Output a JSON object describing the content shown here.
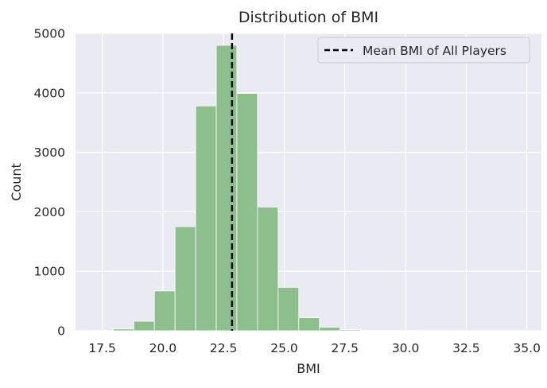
{
  "chart_data": {
    "type": "bar",
    "subtype": "histogram",
    "title": "Distribution of BMI",
    "xlabel": "BMI",
    "ylabel": "Count",
    "xlim": [
      16.4,
      35.6
    ],
    "ylim": [
      0,
      5000
    ],
    "xticks": [
      17.5,
      20.0,
      22.5,
      25.0,
      27.5,
      30.0,
      32.5,
      35.0
    ],
    "xtick_labels": [
      "17.5",
      "20.0",
      "22.5",
      "25.0",
      "27.5",
      "30.0",
      "32.5",
      "35.0"
    ],
    "yticks": [
      0,
      1000,
      2000,
      3000,
      4000,
      5000
    ],
    "ytick_labels": [
      "0",
      "1000",
      "2000",
      "3000",
      "4000",
      "5000"
    ],
    "grid": true,
    "legend_position": "top-right",
    "bins": [
      {
        "x0": 17.1,
        "x1": 17.95,
        "count": 5
      },
      {
        "x0": 17.95,
        "x1": 18.8,
        "count": 30
      },
      {
        "x0": 18.8,
        "x1": 19.65,
        "count": 160
      },
      {
        "x0": 19.65,
        "x1": 20.5,
        "count": 670
      },
      {
        "x0": 20.5,
        "x1": 21.35,
        "count": 1750
      },
      {
        "x0": 21.35,
        "x1": 22.2,
        "count": 3780
      },
      {
        "x0": 22.2,
        "x1": 23.05,
        "count": 4800
      },
      {
        "x0": 23.05,
        "x1": 23.9,
        "count": 3990
      },
      {
        "x0": 23.9,
        "x1": 24.75,
        "count": 2080
      },
      {
        "x0": 24.75,
        "x1": 25.6,
        "count": 730
      },
      {
        "x0": 25.6,
        "x1": 26.45,
        "count": 220
      },
      {
        "x0": 26.45,
        "x1": 27.3,
        "count": 60
      },
      {
        "x0": 27.3,
        "x1": 28.15,
        "count": 18
      },
      {
        "x0": 28.15,
        "x1": 29.0,
        "count": 6
      },
      {
        "x0": 29.0,
        "x1": 29.85,
        "count": 3
      },
      {
        "x0": 29.85,
        "x1": 30.7,
        "count": 2
      },
      {
        "x0": 30.7,
        "x1": 31.55,
        "count": 1
      },
      {
        "x0": 31.55,
        "x1": 32.4,
        "count": 1
      },
      {
        "x0": 32.4,
        "x1": 33.25,
        "count": 1
      },
      {
        "x0": 33.25,
        "x1": 34.1,
        "count": 1
      },
      {
        "x0": 34.1,
        "x1": 34.95,
        "count": 1
      }
    ],
    "mean_line": {
      "x": 22.85,
      "label": "Mean BMI of All Players",
      "color": "#000000",
      "style": "dashed"
    },
    "colors": {
      "bar": "#8cbf8c",
      "bar_edge": "#ffffff",
      "background": "#eaeaf2",
      "grid": "#ffffff",
      "text": "#262626"
    }
  }
}
